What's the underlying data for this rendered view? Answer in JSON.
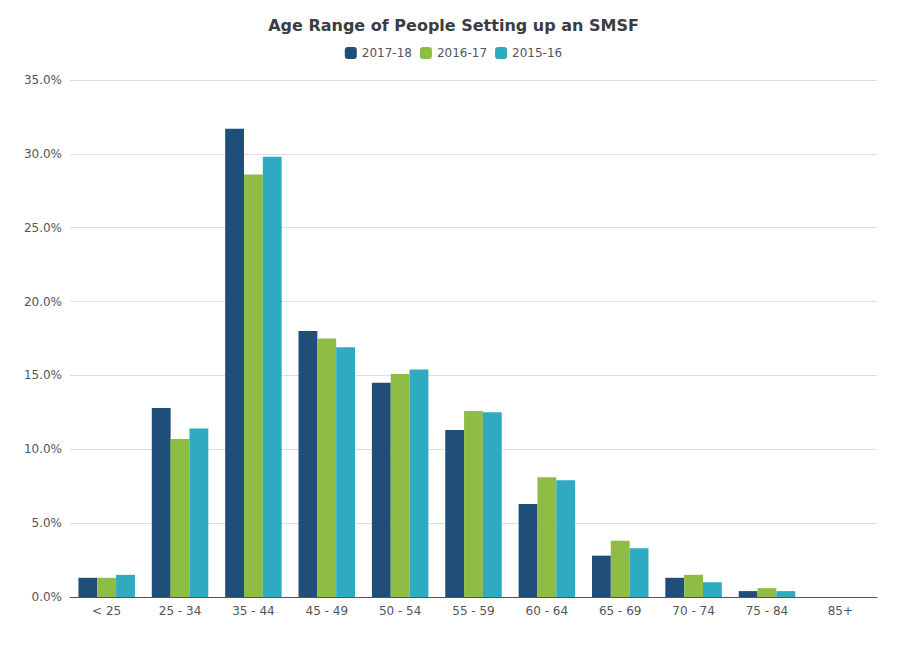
{
  "chart_data": {
    "type": "bar",
    "title": "Age Range of People Setting up an SMSF",
    "categories": [
      "< 25",
      "25 - 34",
      "35 - 44",
      "45 - 49",
      "50 - 54",
      "55 - 59",
      "60 - 64",
      "65 - 69",
      "70 - 74",
      "75 - 84",
      "85+"
    ],
    "series": [
      {
        "name": "2017-18",
        "color": "#1F4E79",
        "values": [
          1.3,
          12.8,
          31.7,
          18.0,
          14.5,
          11.3,
          6.3,
          2.8,
          1.3,
          0.4,
          0.0
        ]
      },
      {
        "name": "2016-17",
        "color": "#8FBC45",
        "values": [
          1.3,
          10.7,
          28.6,
          17.5,
          15.1,
          12.6,
          8.1,
          3.8,
          1.5,
          0.6,
          0.0
        ]
      },
      {
        "name": "2015-16",
        "color": "#2EAAC1",
        "values": [
          1.5,
          11.4,
          29.8,
          16.9,
          15.4,
          12.5,
          7.9,
          3.3,
          1.0,
          0.4,
          0.0
        ]
      }
    ],
    "ylim": [
      0,
      35
    ],
    "yticks": [
      {
        "value": 0,
        "label": "0.0%"
      },
      {
        "value": 5,
        "label": "5.0%"
      },
      {
        "value": 10,
        "label": "10.0%"
      },
      {
        "value": 15,
        "label": "15.0%"
      },
      {
        "value": 20,
        "label": "20.0%"
      },
      {
        "value": 25,
        "label": "25.0%"
      },
      {
        "value": 30,
        "label": "30.0%"
      },
      {
        "value": 35,
        "label": "35.0%"
      }
    ],
    "grid": true,
    "legend": "upper center"
  }
}
